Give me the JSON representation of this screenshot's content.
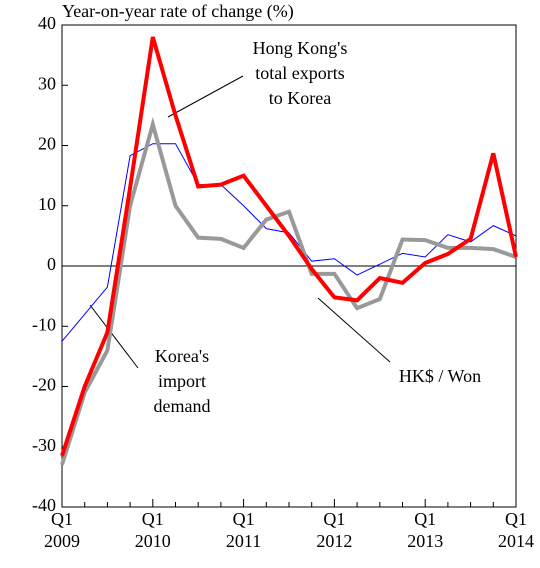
{
  "chart_data": {
    "type": "line",
    "y_axis_label": "Year-on-year rate of change (%)",
    "categories": [
      "Q1 2009",
      null,
      null,
      null,
      "Q1 2010",
      null,
      null,
      null,
      "Q1 2011",
      null,
      null,
      null,
      "Q1 2012",
      null,
      null,
      null,
      "Q1 2013",
      null,
      null,
      null,
      "Q1 2014"
    ],
    "series": [
      {
        "name": "Korea's import demand",
        "color": "#0000ff",
        "width": 1,
        "values": [
          -12.5,
          -8,
          -3.5,
          18.3,
          20.3,
          20.3,
          13.5,
          13.5,
          10,
          6.2,
          5.5,
          0.8,
          1.2,
          -1.5,
          0.3,
          2.1,
          1.5,
          5.2,
          4,
          6.7,
          5
        ]
      },
      {
        "name": "HK$ / Won",
        "color": "#999999",
        "width": 4,
        "values": [
          -33,
          -21,
          -14,
          10,
          23.5,
          10,
          4.7,
          4.5,
          3,
          7.7,
          9,
          -1.3,
          -1.3,
          -7,
          -5.5,
          4.4,
          4.3,
          3,
          3,
          2.8,
          1.5
        ]
      },
      {
        "name": "Hong Kong's total exports to Korea",
        "color": "#ff0000",
        "width": 4,
        "values": [
          -31.5,
          -20,
          -11,
          13,
          38,
          25,
          13.2,
          13.5,
          15,
          10,
          5,
          -0.5,
          -5.2,
          -5.7,
          -2,
          -2.8,
          0.5,
          2,
          4.5,
          18.7,
          1.5
        ]
      }
    ],
    "annotations": [
      {
        "lines": [
          "Hong Kong's",
          "total exports",
          "to Korea"
        ]
      },
      {
        "lines": [
          "Korea's",
          "import",
          "demand"
        ]
      },
      {
        "lines": [
          "HK$ / Won"
        ]
      }
    ],
    "ylim": [
      -40,
      40
    ],
    "yticks": [
      -40,
      -30,
      -20,
      -10,
      0,
      10,
      20,
      30,
      40
    ]
  }
}
